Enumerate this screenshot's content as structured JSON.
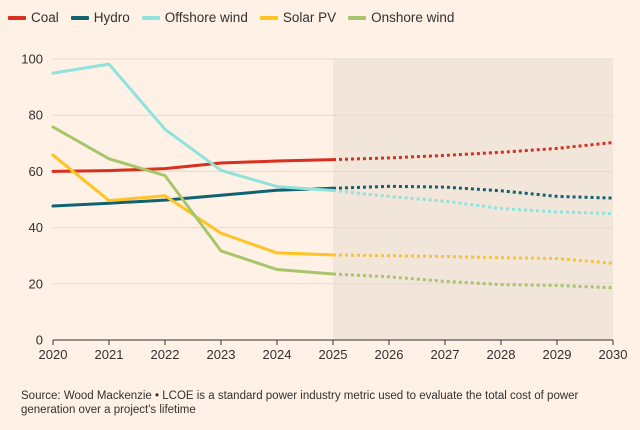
{
  "chart_data": {
    "type": "line",
    "title": "",
    "xlabel": "",
    "ylabel": "",
    "x": [
      2020,
      2021,
      2022,
      2023,
      2024,
      2025,
      2026,
      2027,
      2028,
      2029,
      2030
    ],
    "x_tick_labels": [
      "2020",
      "2021",
      "2022",
      "2023",
      "2024",
      "2025",
      "2026",
      "2027",
      "2028",
      "2029",
      "2030"
    ],
    "y_ticks": [
      0,
      20,
      40,
      60,
      80,
      100
    ],
    "y_tick_labels": [
      "0",
      "20",
      "40",
      "60",
      "80",
      "100"
    ],
    "xlim": [
      2020,
      2030
    ],
    "ylim": [
      0,
      100
    ],
    "forecast_start": 2025,
    "forecast_shaded_range": [
      2025,
      2030
    ],
    "grid": "horizontal",
    "legend_position": "top-left",
    "series": [
      {
        "name": "Coal",
        "color": "#d7301f",
        "values": [
          60,
          60.3,
          61,
          63,
          63.7,
          64.2,
          64.8,
          65.7,
          66.8,
          68.2,
          70.3
        ]
      },
      {
        "name": "Hydro",
        "color": "#0f6270",
        "values": [
          47.7,
          48.7,
          49.8,
          51.5,
          53.3,
          54,
          54.7,
          54.4,
          53.1,
          51.1,
          50.5
        ]
      },
      {
        "name": "Offshore wind",
        "color": "#8fe3dc",
        "values": [
          95,
          98.2,
          75,
          60.4,
          54.6,
          53.2,
          51.1,
          49.4,
          46.8,
          45.6,
          45
        ]
      },
      {
        "name": "Solar PV",
        "color": "#ffc423",
        "values": [
          65.8,
          49.6,
          51.3,
          38,
          31,
          30.3,
          30,
          29.7,
          29.3,
          29,
          27.3
        ]
      },
      {
        "name": "Onshore wind",
        "color": "#a7c56a",
        "values": [
          75.8,
          64.5,
          58.5,
          31.7,
          25.1,
          23.5,
          22.5,
          20.9,
          19.7,
          19.4,
          18.6
        ]
      }
    ]
  },
  "source_note": "Source: Wood Mackenzie • LCOE is a standard power industry metric used to evaluate the total cost of power generation over a project's lifetime"
}
